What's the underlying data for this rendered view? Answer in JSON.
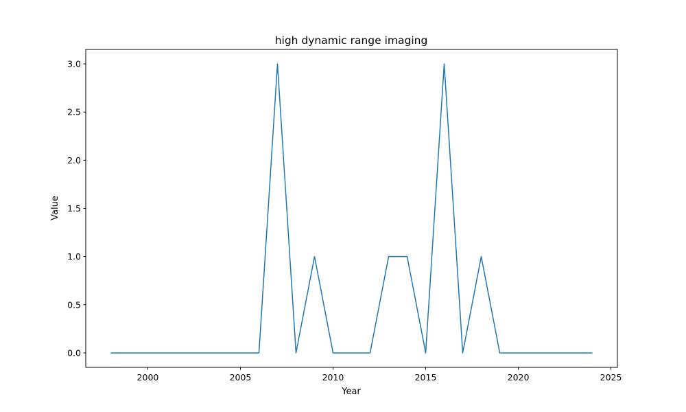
{
  "chart_data": {
    "type": "line",
    "title": "high dynamic range imaging",
    "xlabel": "Year",
    "ylabel": "Value",
    "xlim": [
      1996.65,
      2025.35
    ],
    "ylim": [
      -0.15,
      3.15
    ],
    "xticks": [
      2000,
      2005,
      2010,
      2015,
      2020,
      2025
    ],
    "yticks": [
      0.0,
      0.5,
      1.0,
      1.5,
      2.0,
      2.5,
      3.0
    ],
    "ytick_labels": [
      "0.0",
      "0.5",
      "1.0",
      "1.5",
      "2.0",
      "2.5",
      "3.0"
    ],
    "grid": false,
    "series": [
      {
        "color": "#1f77b4",
        "x": [
          1998,
          1999,
          2000,
          2001,
          2002,
          2003,
          2004,
          2005,
          2006,
          2007,
          2008,
          2009,
          2010,
          2011,
          2012,
          2013,
          2014,
          2015,
          2016,
          2017,
          2018,
          2019,
          2020,
          2021,
          2022,
          2023,
          2024
        ],
        "y": [
          0,
          0,
          0,
          0,
          0,
          0,
          0,
          0,
          0,
          3,
          0,
          1,
          0,
          0,
          0,
          1,
          1,
          0,
          3,
          0,
          1,
          0,
          0,
          0,
          0,
          0,
          0
        ]
      }
    ]
  }
}
